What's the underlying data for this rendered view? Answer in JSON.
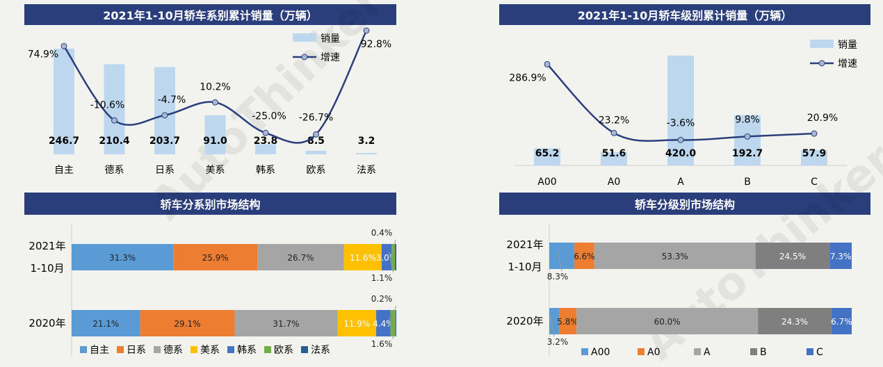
{
  "watermark": "AutoThinker 汽车智库",
  "chart_data": [
    {
      "type": "bar+line",
      "title": "2021年1-10月轿车系别累计销量（万辆）",
      "categories": [
        "自主",
        "德系",
        "日系",
        "美系",
        "韩系",
        "欧系",
        "法系"
      ],
      "series": [
        {
          "name": "销量",
          "type": "bar",
          "values": [
            246.7,
            210.4,
            203.7,
            91.0,
            23.8,
            8.5,
            3.2
          ],
          "labels": [
            "246.7",
            "210.4",
            "203.7",
            "91.0",
            "23.8",
            "8.5",
            "3.2"
          ],
          "color": "#bdd7ee"
        },
        {
          "name": "增速",
          "type": "line",
          "values": [
            74.9,
            -10.6,
            -4.7,
            10.2,
            -25.0,
            -26.7,
            92.8
          ],
          "labels": [
            "74.9%",
            "-10.6%",
            "-4.7%",
            "10.2%",
            "-25.0%",
            "-26.7%",
            "92.8%"
          ],
          "color": "#2b3e7c"
        }
      ],
      "legend": "top-right"
    },
    {
      "type": "bar+line",
      "title": "2021年1-10月轿车级别累计销量（万辆）",
      "categories": [
        "A00",
        "A0",
        "A",
        "B",
        "C"
      ],
      "series": [
        {
          "name": "销量",
          "type": "bar",
          "values": [
            65.2,
            51.6,
            420.0,
            192.7,
            57.9
          ],
          "labels": [
            "65.2",
            "51.6",
            "420.0",
            "192.7",
            "57.9"
          ],
          "color": "#bdd7ee"
        },
        {
          "name": "增速",
          "type": "line",
          "values": [
            286.9,
            23.2,
            -3.6,
            9.8,
            20.9
          ],
          "labels": [
            "286.9%",
            "23.2%",
            "-3.6%",
            "9.8%",
            "20.9%"
          ],
          "color": "#2b3e7c"
        }
      ],
      "legend": "top-right"
    },
    {
      "type": "stacked-bar-100",
      "title": "轿车分系别市场结构",
      "rows": [
        "2021年\n1-10月",
        "2020年"
      ],
      "row_lines": [
        [
          "2021年",
          "1-10月"
        ],
        [
          "2020年"
        ]
      ],
      "series": [
        {
          "name": "自主",
          "color": "#5b9bd5",
          "values": [
            31.3,
            21.1
          ],
          "labels": [
            "31.3%",
            "21.1%"
          ]
        },
        {
          "name": "日系",
          "color": "#ed7d31",
          "values": [
            25.9,
            29.1
          ],
          "labels": [
            "25.9%",
            "29.1%"
          ]
        },
        {
          "name": "德系",
          "color": "#a5a5a5",
          "values": [
            26.7,
            31.7
          ],
          "labels": [
            "26.7%",
            "31.7%"
          ]
        },
        {
          "name": "美系",
          "color": "#ffc000",
          "values": [
            11.6,
            11.9
          ],
          "labels": [
            "11.6%",
            "11.9%"
          ]
        },
        {
          "name": "韩系",
          "color": "#4472c4",
          "values": [
            3.0,
            4.4
          ],
          "labels": [
            "3.0%",
            "4.4%"
          ]
        },
        {
          "name": "欧系",
          "color": "#70ad47",
          "values": [
            1.1,
            1.6
          ],
          "labels": [
            "1.1%",
            "1.6%"
          ]
        },
        {
          "name": "法系",
          "color": "#255e91",
          "values": [
            0.4,
            0.2
          ],
          "labels": [
            "0.4%",
            "0.2%"
          ]
        }
      ],
      "legend": "bottom"
    },
    {
      "type": "stacked-bar-100",
      "title": "轿车分级别市场结构",
      "rows": [
        "2021年\n1-10月",
        "2020年"
      ],
      "row_lines": [
        [
          "2021年",
          "1-10月"
        ],
        [
          "2020年"
        ]
      ],
      "series": [
        {
          "name": "A00",
          "color": "#5b9bd5",
          "values": [
            8.3,
            3.2
          ],
          "labels": [
            "8.3%",
            "3.2%"
          ]
        },
        {
          "name": "A0",
          "color": "#ed7d31",
          "values": [
            6.6,
            5.8
          ],
          "labels": [
            "6.6%",
            "5.8%"
          ]
        },
        {
          "name": "A",
          "color": "#a5a5a5",
          "values": [
            53.3,
            60.0
          ],
          "labels": [
            "53.3%",
            "60.0%"
          ]
        },
        {
          "name": "B",
          "color": "#7f7f7f",
          "values": [
            24.5,
            24.3
          ],
          "labels": [
            "24.5%",
            "24.3%"
          ]
        },
        {
          "name": "C",
          "color": "#4472c4",
          "values": [
            7.3,
            6.7
          ],
          "labels": [
            "7.3%",
            "6.7%"
          ]
        }
      ],
      "legend": "bottom"
    }
  ]
}
